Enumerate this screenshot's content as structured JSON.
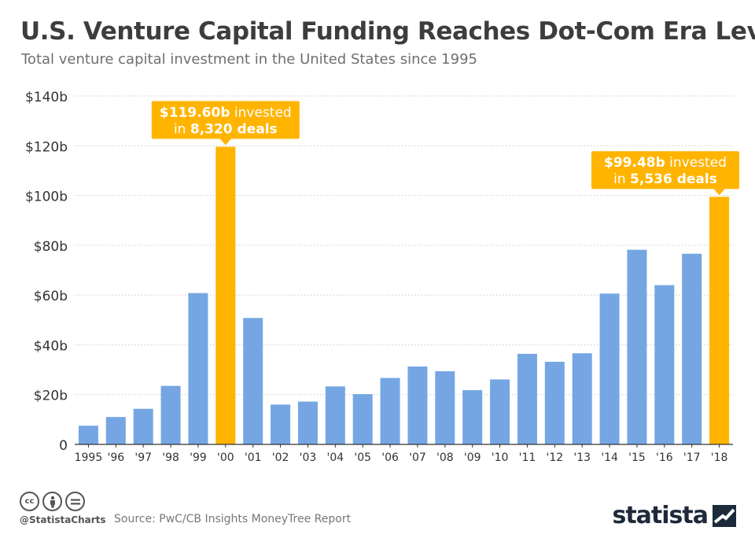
{
  "chart_data": {
    "type": "bar",
    "title": "U.S. Venture Capital Funding Reaches Dot-Com Era Level",
    "subtitle": "Total venture capital investment in the United States since 1995",
    "categories": [
      "1995",
      "'96",
      "'97",
      "'98",
      "'99",
      "'00",
      "'01",
      "'02",
      "'03",
      "'04",
      "'05",
      "'06",
      "'07",
      "'08",
      "'09",
      "'10",
      "'11",
      "'12",
      "'13",
      "'14",
      "'15",
      "'16",
      "'17",
      "'18"
    ],
    "values": [
      7.5,
      11.0,
      14.3,
      23.5,
      60.8,
      119.6,
      50.8,
      16.0,
      17.2,
      23.3,
      20.2,
      26.7,
      31.3,
      29.4,
      21.8,
      26.1,
      36.4,
      33.2,
      36.6,
      60.6,
      78.2,
      64.0,
      76.6,
      99.48
    ],
    "ylim": [
      0,
      140
    ],
    "yticks": [
      0,
      20,
      40,
      60,
      80,
      100,
      120,
      140
    ],
    "ytick_labels": [
      "0",
      "$20b",
      "$40b",
      "$60b",
      "$80b",
      "$100b",
      "$120b",
      "$140b"
    ],
    "grid": true,
    "highlight_indices": [
      5,
      23
    ],
    "colors": {
      "bar": "#75a6e3",
      "highlight": "#ffb400",
      "grid": "#c9c9c9",
      "axis": "#333333"
    },
    "annotations": [
      {
        "index": 5,
        "line1_bold": "$119.60b",
        "line1_rest": " invested",
        "line2_pre": "in ",
        "line2_bold": "8,320 deals"
      },
      {
        "index": 23,
        "line1_bold": "$99.48b",
        "line1_rest": " invested",
        "line2_pre": "in ",
        "line2_bold": "5,536 deals"
      }
    ]
  },
  "footer": {
    "handle": "@StatistaCharts",
    "source": "Source: PwC/CB Insights MoneyTree Report",
    "brand": "statista",
    "icons": [
      "cc-icon",
      "by-icon",
      "nd-icon"
    ]
  }
}
